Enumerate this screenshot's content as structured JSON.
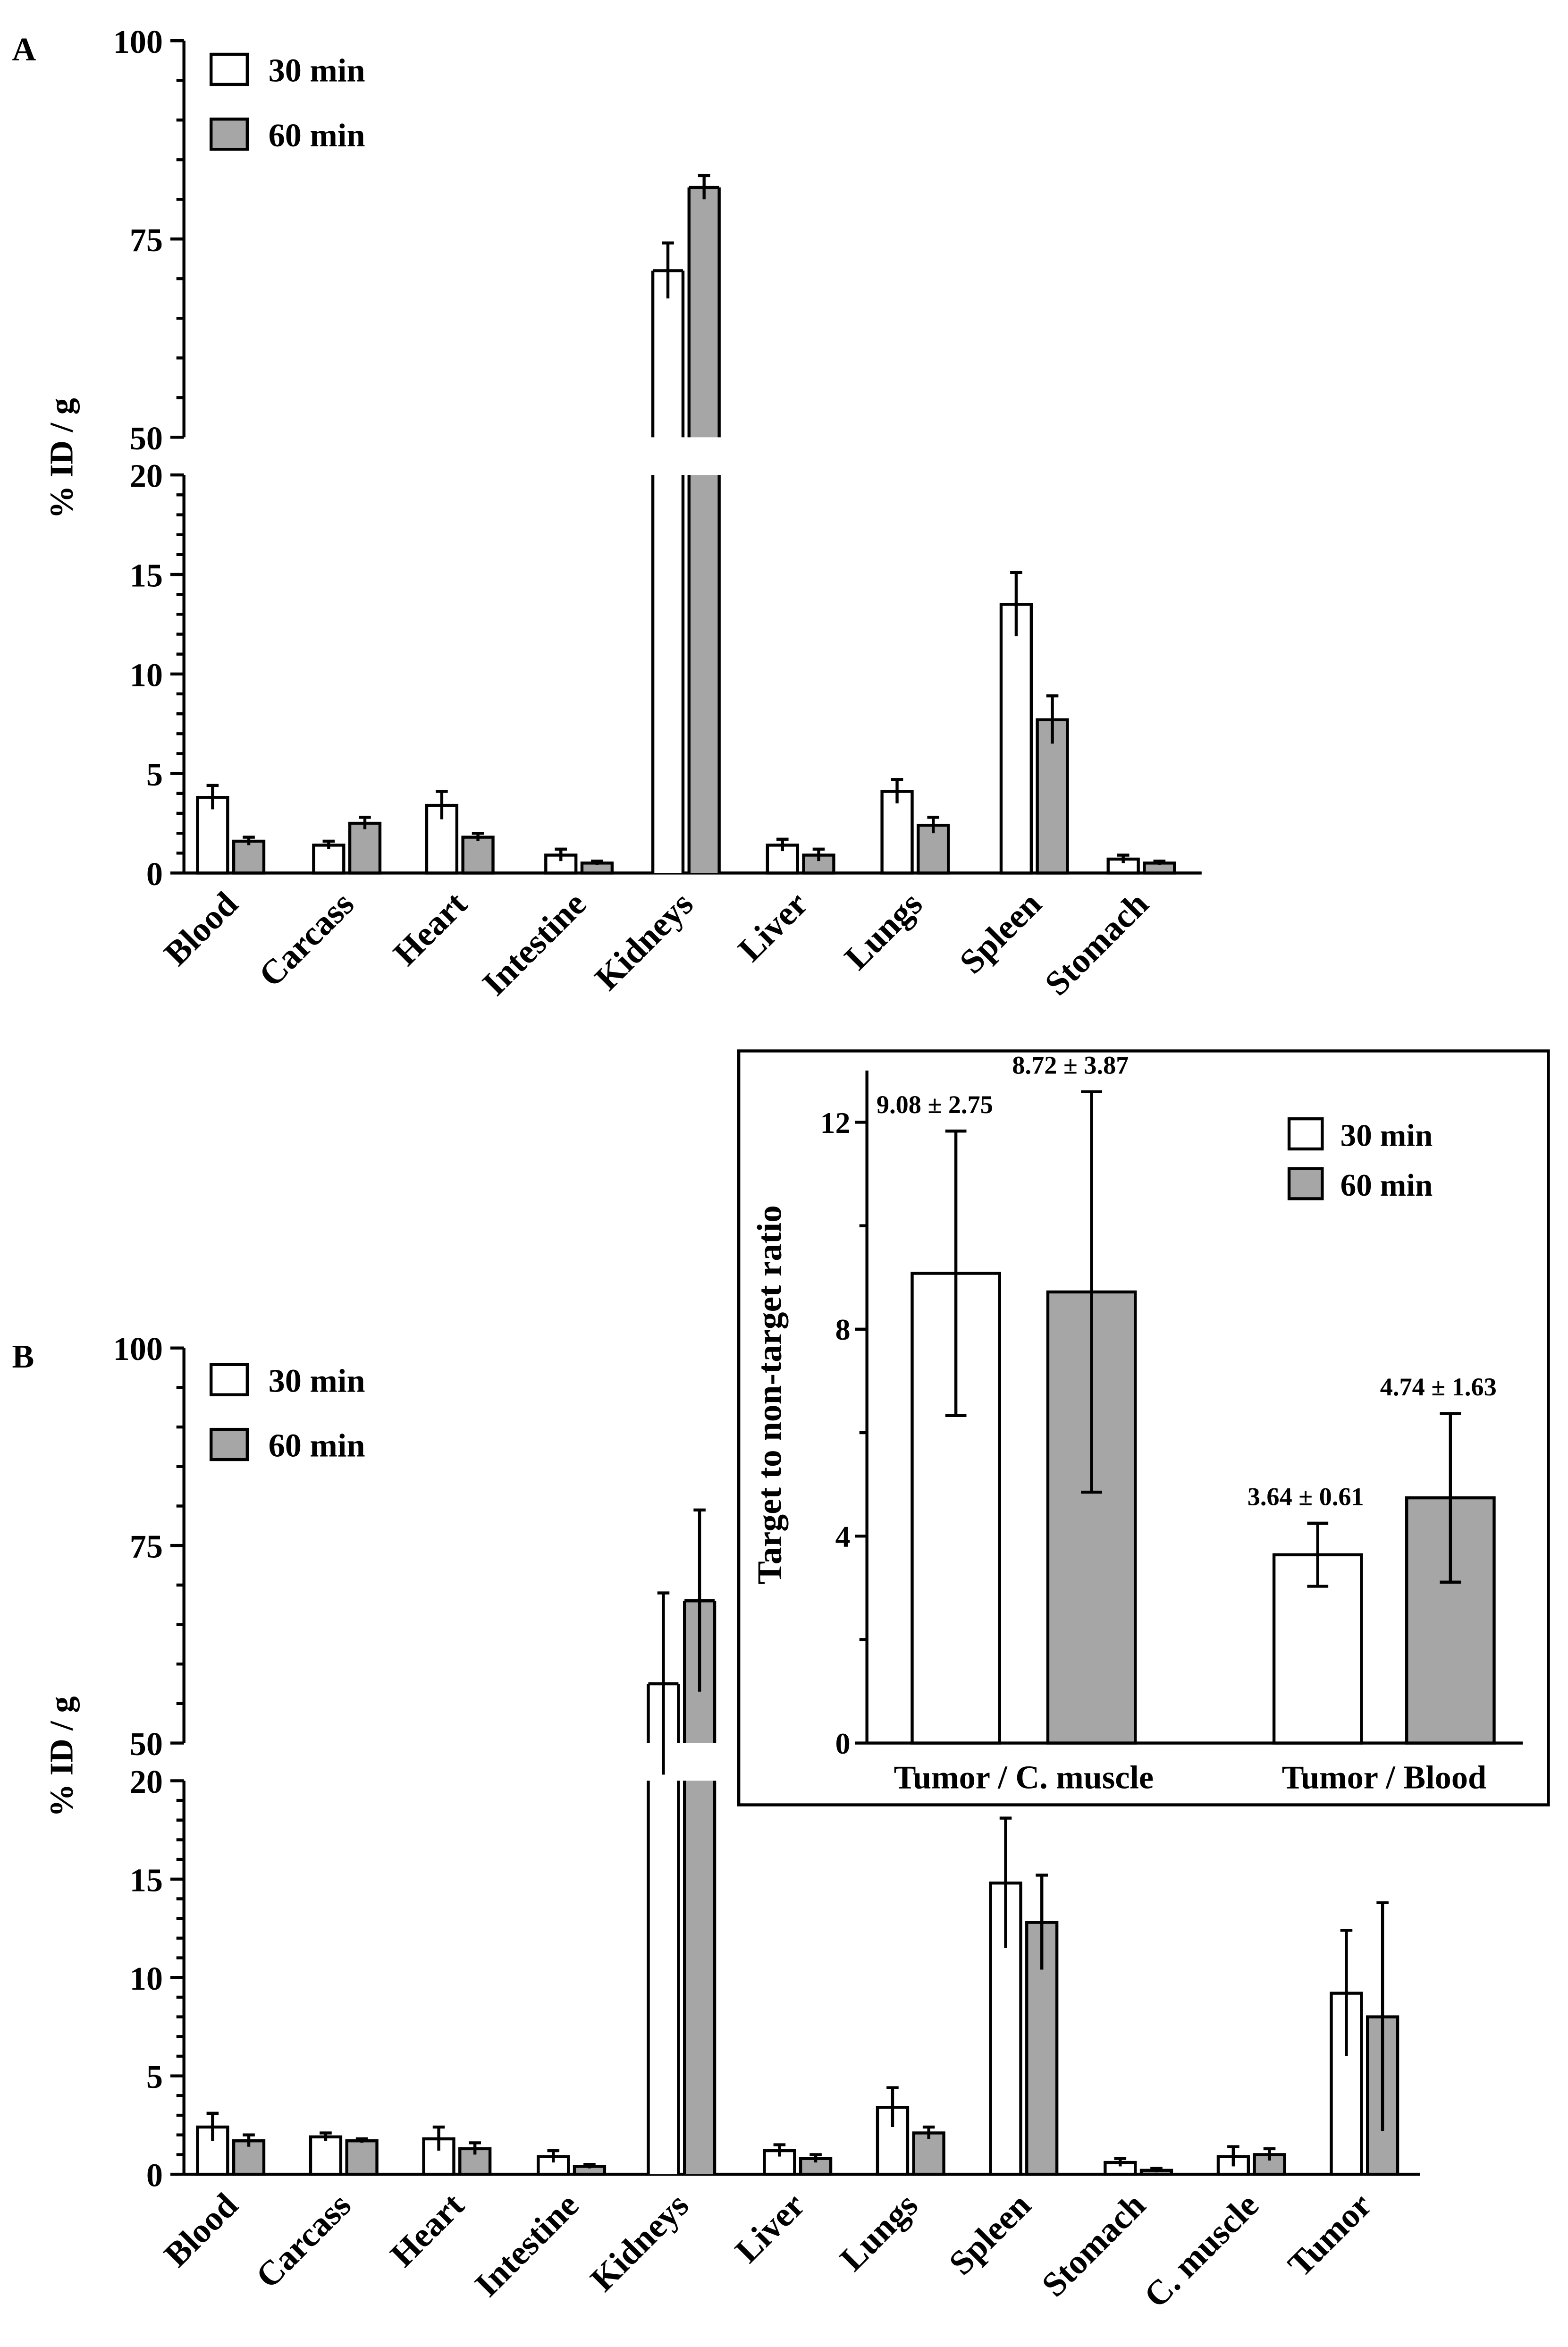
{
  "chart_data": [
    {
      "panel_label": "A",
      "type": "bar",
      "ylabel": "% ID / g",
      "broken_axis": {
        "lower_range": [
          0,
          20
        ],
        "upper_range": [
          50,
          100
        ]
      },
      "lower_ticks": [
        "0",
        "5",
        "10",
        "15",
        "20"
      ],
      "upper_ticks": [
        "50",
        "75",
        "100"
      ],
      "categories": [
        "Blood",
        "Carcass",
        "Heart",
        "Intestine",
        "Kidneys",
        "Liver",
        "Lungs",
        "Spleen",
        "Stomach"
      ],
      "series": [
        {
          "name": "30 min",
          "color": "#ffffff",
          "values": [
            3.8,
            1.4,
            3.4,
            0.9,
            71,
            1.4,
            4.1,
            13.5,
            0.7
          ],
          "errors": [
            0.6,
            0.2,
            0.7,
            0.3,
            3.5,
            0.3,
            0.6,
            1.6,
            0.2
          ]
        },
        {
          "name": "60 min",
          "color": "#a6a6a6",
          "values": [
            1.6,
            2.5,
            1.8,
            0.5,
            81.5,
            0.9,
            2.4,
            7.7,
            0.5
          ],
          "errors": [
            0.2,
            0.3,
            0.2,
            0.1,
            1.5,
            0.3,
            0.4,
            1.2,
            0.1
          ]
        }
      ],
      "legend": [
        "30 min",
        "60 min"
      ],
      "legend_position": "top-left"
    },
    {
      "panel_label": "B",
      "type": "bar",
      "ylabel": "% ID / g",
      "broken_axis": {
        "lower_range": [
          0,
          20
        ],
        "upper_range": [
          50,
          100
        ]
      },
      "lower_ticks": [
        "0",
        "5",
        "10",
        "15",
        "20"
      ],
      "upper_ticks": [
        "50",
        "75",
        "100"
      ],
      "categories": [
        "Blood",
        "Carcass",
        "Heart",
        "Intestine",
        "Kidneys",
        "Liver",
        "Lungs",
        "Spleen",
        "Stomach",
        "C. muscle",
        "Tumor"
      ],
      "series": [
        {
          "name": "30 min",
          "color": "#ffffff",
          "values": [
            2.4,
            1.9,
            1.8,
            0.9,
            57.5,
            1.2,
            3.4,
            14.8,
            0.6,
            0.9,
            9.2
          ],
          "errors": [
            0.7,
            0.2,
            0.6,
            0.3,
            11.5,
            0.3,
            1.0,
            3.3,
            0.2,
            0.5,
            3.2
          ]
        },
        {
          "name": "60 min",
          "color": "#a6a6a6",
          "values": [
            1.7,
            1.7,
            1.3,
            0.4,
            68,
            0.8,
            2.1,
            12.8,
            0.2,
            1.0,
            8.0
          ],
          "errors": [
            0.3,
            0.1,
            0.3,
            0.1,
            11.5,
            0.2,
            0.3,
            2.4,
            0.1,
            0.3,
            5.8
          ]
        }
      ],
      "legend": [
        "30 min",
        "60 min"
      ],
      "legend_position": "top-left"
    },
    {
      "panel_label": "inset",
      "type": "bar",
      "ylabel": "Target to non-target ratio",
      "ylim": [
        0,
        13
      ],
      "ticks": [
        "0",
        "4",
        "8",
        "12"
      ],
      "categories": [
        "Tumor / C. muscle",
        "Tumor / Blood"
      ],
      "series": [
        {
          "name": "30 min",
          "color": "#ffffff",
          "values": [
            9.08,
            3.64
          ],
          "errors": [
            2.75,
            0.61
          ],
          "labels": [
            "9.08 ± 2.75",
            "3.64 ± 0.61"
          ]
        },
        {
          "name": "60 min",
          "color": "#a6a6a6",
          "values": [
            8.72,
            4.74
          ],
          "errors": [
            3.87,
            1.63
          ],
          "labels": [
            "8.72 ± 3.87",
            "4.74 ± 1.63"
          ]
        }
      ],
      "legend": [
        "30 min",
        "60 min"
      ],
      "legend_position": "top-right"
    }
  ]
}
